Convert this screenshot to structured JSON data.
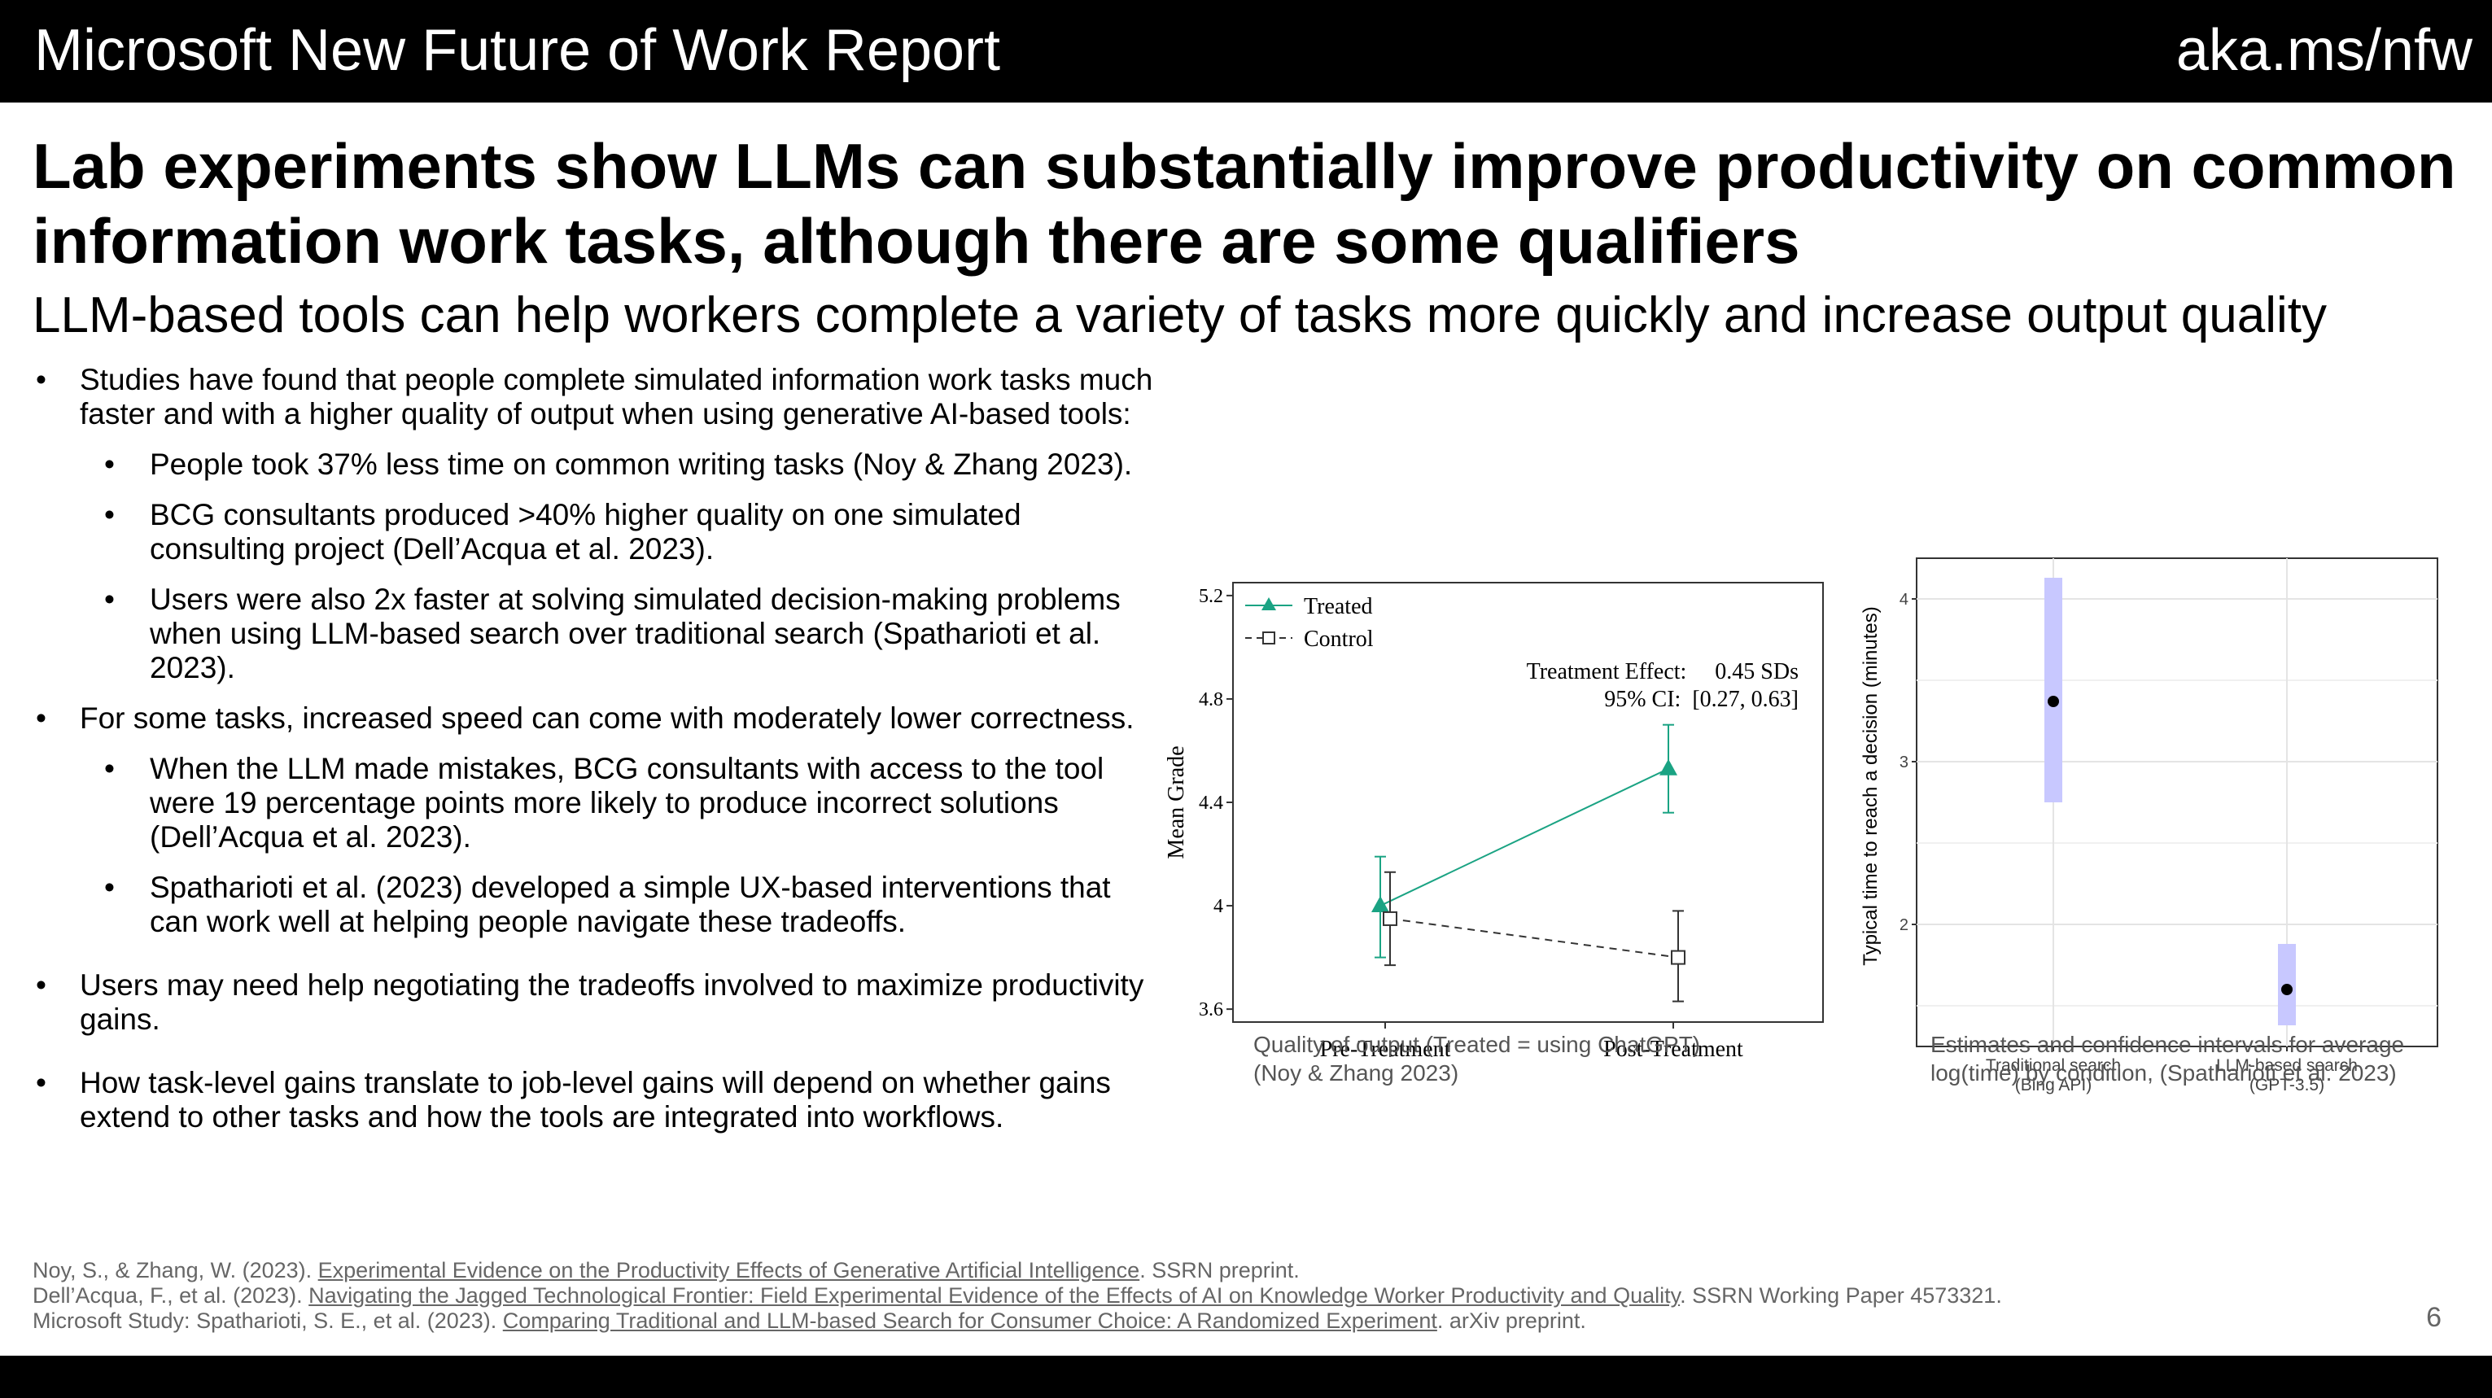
{
  "header": {
    "report_title": "Microsoft New Future of Work Report",
    "url": "aka.ms/nfw"
  },
  "headline": "Lab experiments show LLMs can substantially improve productivity on common information work tasks, although there are some qualifiers",
  "subheadline": "LLM-based tools can help workers complete a variety of tasks more quickly and increase output quality",
  "bullets": [
    "Studies have found that people complete simulated information work tasks much faster and with a higher quality of output when using generative AI-based tools:",
    "People took 37% less time on common writing tasks (Noy & Zhang 2023).",
    "BCG consultants produced >40% higher quality on one simulated consulting project (Dell’Acqua et al. 2023).",
    "Users were also 2x faster at solving simulated decision-making problems when using LLM-based search over traditional search (Spatharioti et al. 2023).",
    "For some tasks, increased speed can come with moderately lower correctness.",
    "When the LLM made mistakes, BCG consultants with access to the tool were 19 percentage points more likely to produce incorrect solutions (Dell’Acqua et al. 2023).",
    "Spatharioti et al. (2023) developed a simple UX-based interventions that can work well at helping people navigate these tradeoffs.",
    "Users may need help negotiating the tradeoffs involved to maximize productivity gains.",
    "How task-level gains translate to job-level gains will depend on whether gains extend to other tasks and how the tools are integrated into workflows."
  ],
  "chart_data": [
    {
      "type": "line",
      "categories": [
        "Pre-Treatment",
        "Post-Treatment"
      ],
      "ylabel": "Mean Grade",
      "ylim": [
        3.55,
        5.25
      ],
      "yticks": [
        "3.6",
        "4",
        "4.4",
        "4.8",
        "5.2"
      ],
      "series": [
        {
          "name": "Treated",
          "values": [
            4.0,
            4.53
          ],
          "ci_low": [
            3.8,
            4.36
          ],
          "ci_high": [
            4.19,
            4.7
          ],
          "color": "#1aa383"
        },
        {
          "name": "Control",
          "values": [
            3.95,
            3.8
          ],
          "ci_low": [
            3.77,
            3.63
          ],
          "ci_high": [
            4.13,
            3.98
          ],
          "color": "#333333"
        }
      ],
      "annotation": [
        "Treatment Effect:     0.45 SDs",
        "95% CI:  [0.27, 0.63]"
      ],
      "legend": "top-left",
      "caption": [
        "Quality of output (Treated = using ChatGPT)",
        "(Noy & Zhang 2023)"
      ]
    },
    {
      "type": "scatter",
      "categories": [
        [
          "Traditional search",
          "(Bing API)"
        ],
        [
          "LLM-based search",
          "(GPT-3.5)"
        ]
      ],
      "ylabel": "Typical time to reach a decision (minutes)",
      "ylim": [
        1.25,
        4.25
      ],
      "yticks": [
        "2",
        "3",
        "4"
      ],
      "values": [
        3.37,
        1.6
      ],
      "ci_low": [
        2.75,
        1.38
      ],
      "ci_high": [
        4.13,
        1.88
      ],
      "grid": true,
      "color": "#c8c8ff",
      "caption": [
        "Estimates and confidence intervals for average",
        "log(time) by condition, (Spatharioti et al. 2023)"
      ]
    }
  ],
  "references": [
    {
      "pre": "Noy, S., & Zhang, W. (2023). ",
      "link": "Experimental Evidence on the Productivity Effects of Generative Artificial Intelligence",
      "post": ". SSRN preprint."
    },
    {
      "pre": "Dell’Acqua, F., et al. (2023). ",
      "link": "Navigating the Jagged Technological Frontier: Field Experimental Evidence of the Effects of AI on Knowledge Worker Productivity and Quality",
      "post": ". SSRN Working Paper 4573321."
    },
    {
      "pre": "Microsoft Study: Spatharioti, S. E., et al. (2023). ",
      "link": "Comparing Traditional and LLM-based Search for Consumer Choice: A Randomized Experiment",
      "post": ". arXiv preprint."
    }
  ],
  "page_number": "6"
}
